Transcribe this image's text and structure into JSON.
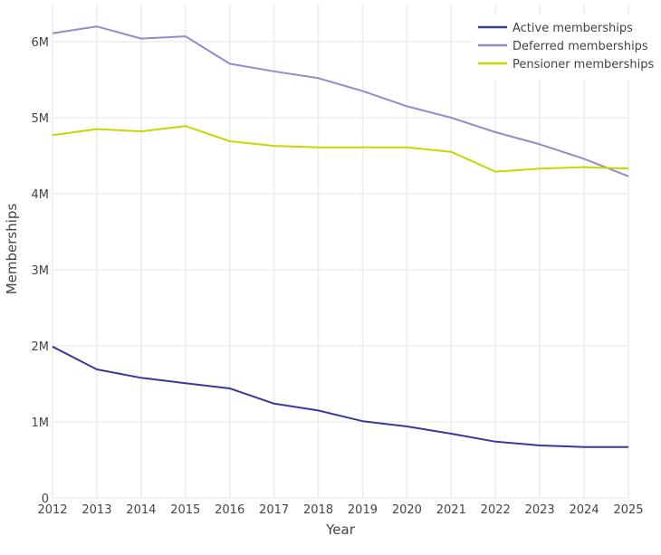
{
  "chart_data": {
    "type": "line",
    "title": "",
    "xlabel": "Year",
    "ylabel": "Memberships",
    "x": [
      2012,
      2013,
      2014,
      2015,
      2016,
      2017,
      2018,
      2019,
      2020,
      2021,
      2022,
      2023,
      2024,
      2025
    ],
    "xlim": [
      2012,
      2025
    ],
    "ylim": [
      0,
      6500000
    ],
    "yticks": [
      0,
      1000000,
      2000000,
      3000000,
      4000000,
      5000000,
      6000000
    ],
    "ytick_labels": [
      "0",
      "1M",
      "2M",
      "3M",
      "4M",
      "5M",
      "6M"
    ],
    "grid": true,
    "legend_position": "top-right",
    "series": [
      {
        "name": "Active memberships",
        "color": "#3b3896",
        "values": [
          1990000,
          1690000,
          1580000,
          1510000,
          1440000,
          1240000,
          1150000,
          1010000,
          940000,
          845000,
          740000,
          690000,
          670000,
          670000
        ]
      },
      {
        "name": "Deferred memberships",
        "color": "#948bcb",
        "values": [
          6110000,
          6200000,
          6040000,
          6070000,
          5710000,
          5610000,
          5520000,
          5350000,
          5150000,
          5000000,
          4810000,
          4650000,
          4460000,
          4230000
        ]
      },
      {
        "name": "Pensioner memberships",
        "color": "#c6d800",
        "values": [
          4770000,
          4850000,
          4820000,
          4890000,
          4690000,
          4630000,
          4610000,
          4610000,
          4610000,
          4550000,
          4290000,
          4330000,
          4350000,
          4330000
        ]
      }
    ]
  }
}
